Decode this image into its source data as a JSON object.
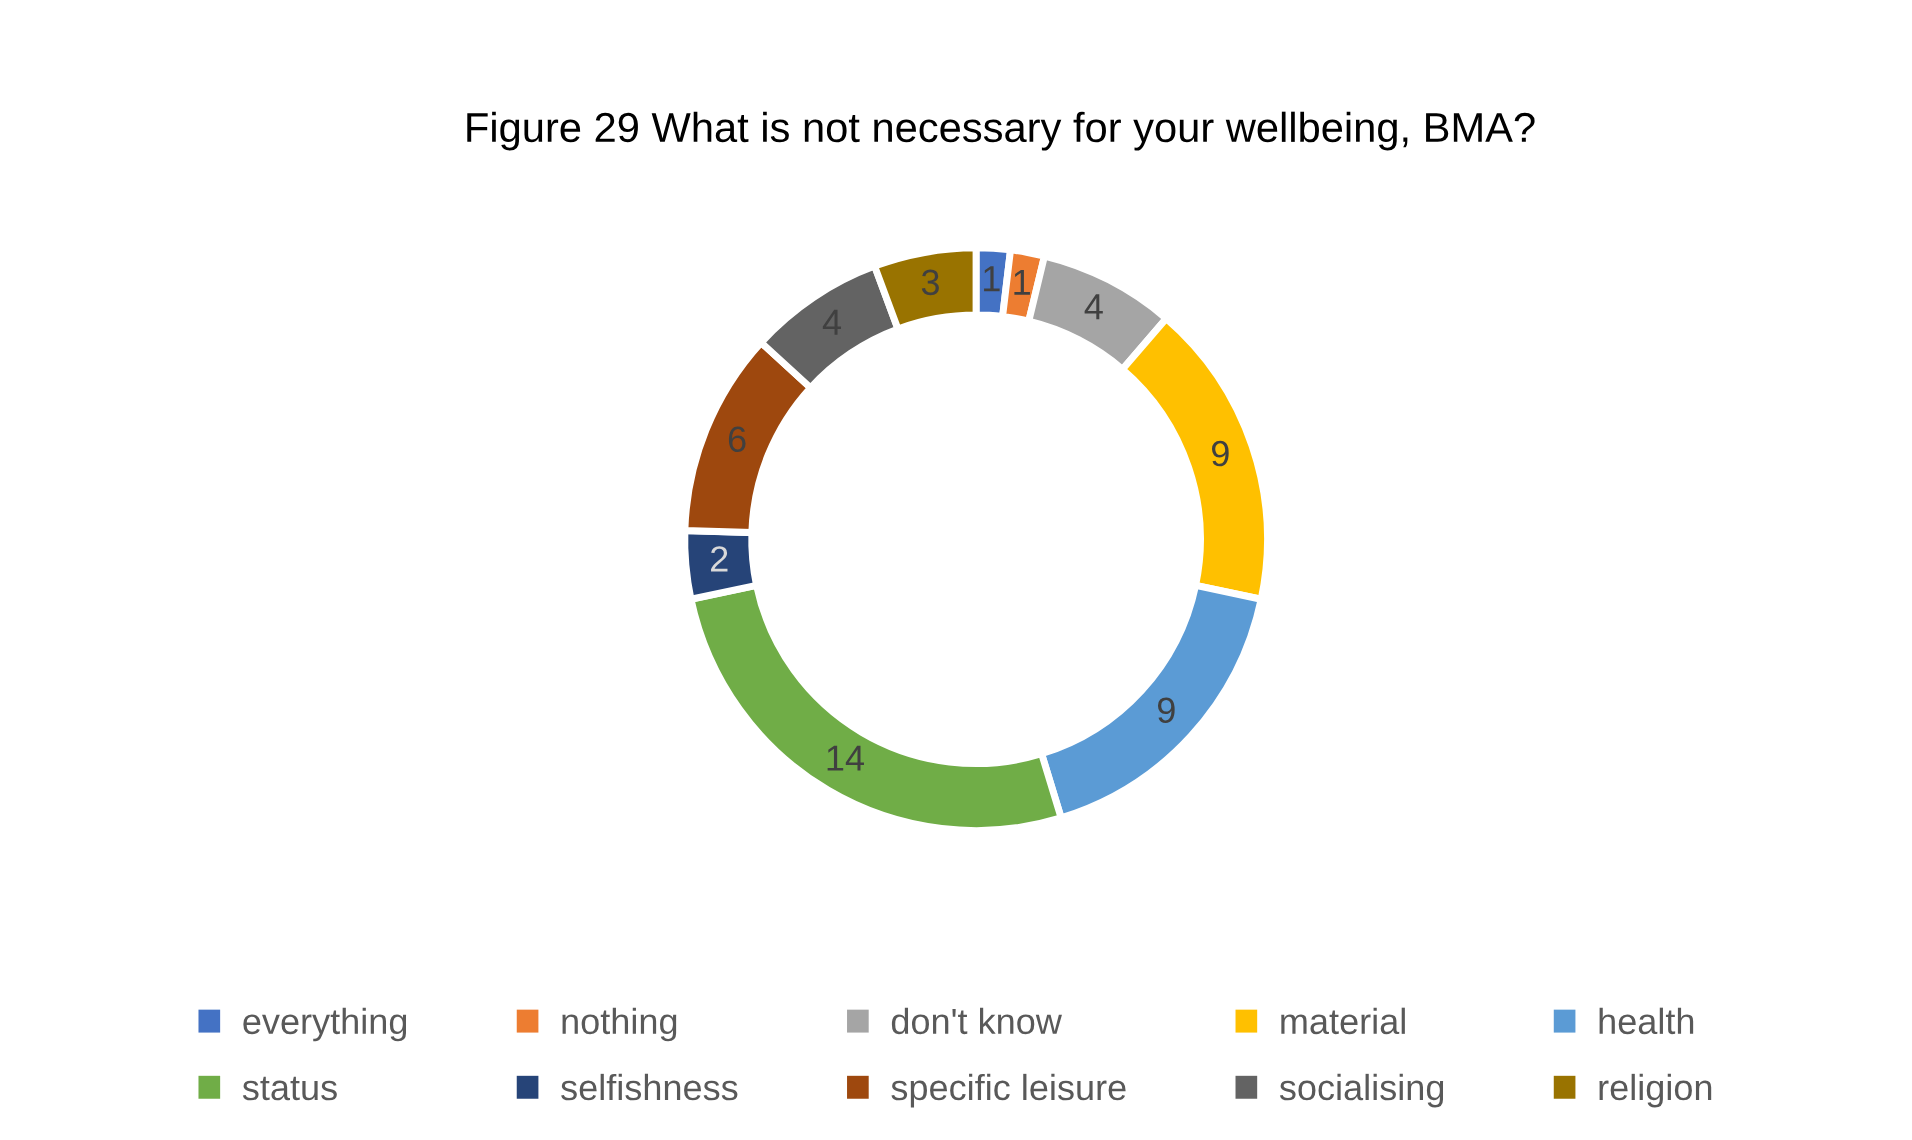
{
  "chart_data": {
    "type": "donut",
    "title": "Figure 29 What is not necessary for your wellbeing, BMA?",
    "categories": [
      "everything",
      "nothing",
      "don't know",
      "material",
      "health",
      "status",
      "selfishness",
      "specific leisure",
      "socialising",
      "religion"
    ],
    "values": [
      1,
      1,
      4,
      9,
      9,
      14,
      2,
      6,
      4,
      3
    ],
    "colors": [
      "#4472c4",
      "#ed7d31",
      "#a5a5a5",
      "#ffc000",
      "#5b9bd5",
      "#70ad47",
      "#264478",
      "#9e480e",
      "#636363",
      "#997300"
    ],
    "data_labels": true,
    "legend": "bottom"
  }
}
